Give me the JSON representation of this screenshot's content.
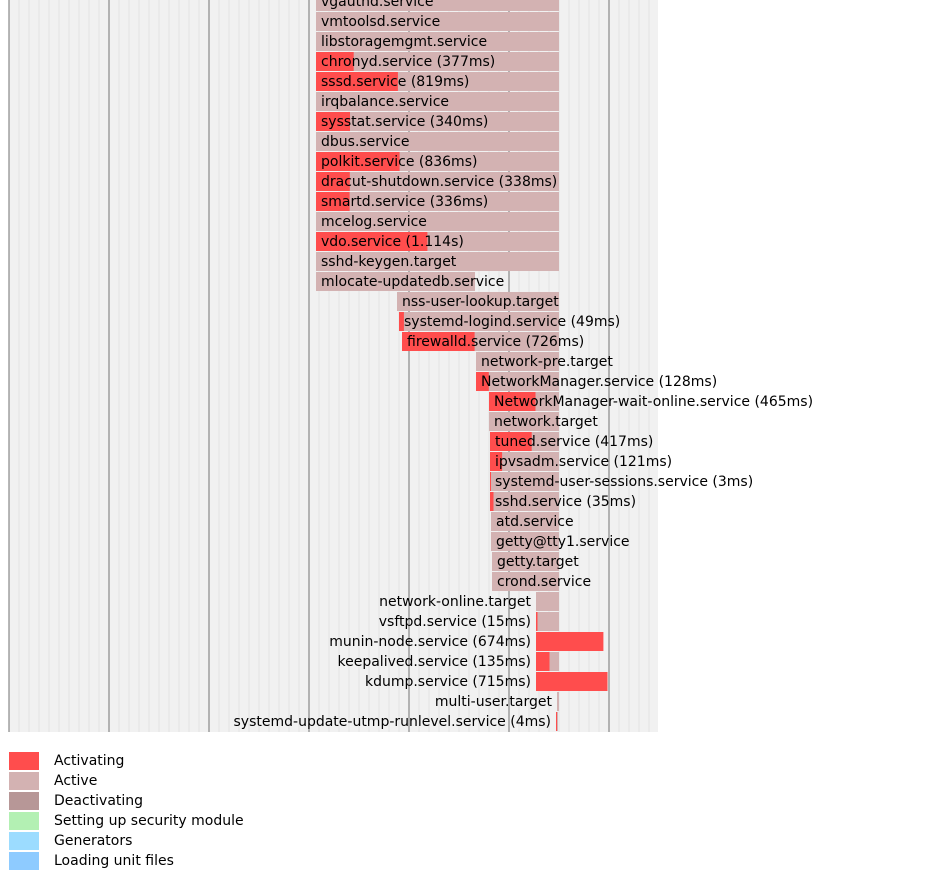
{
  "chart_data": {
    "type": "gantt",
    "time_unit": "seconds",
    "colors": {
      "activating": "#ff4d4d",
      "active": "#d3b2b2",
      "deactivating": "#b79797",
      "security": "#b3f0b3",
      "generators": "#9cdcff",
      "unitfiles": "#8ecbff",
      "background": "#f1f1f1",
      "major_grid": "#888888"
    },
    "units": [
      {
        "name": "vgauthd.service",
        "label": "vgauthd.service",
        "start": 18.07,
        "act_end": 18.07,
        "end": 20.5,
        "label_left": false
      },
      {
        "name": "vmtoolsd.service",
        "label": "vmtoolsd.service",
        "start": 18.07,
        "act_end": 18.07,
        "end": 20.5,
        "label_left": false
      },
      {
        "name": "libstoragemgmt.service",
        "label": "libstoragemgmt.service",
        "start": 18.07,
        "act_end": 18.07,
        "end": 20.5,
        "label_left": false
      },
      {
        "name": "chronyd.service",
        "duration": "377ms",
        "label": "chronyd.service (377ms)",
        "start": 18.07,
        "act_end": 18.447,
        "end": 20.5,
        "label_left": false
      },
      {
        "name": "sssd.service",
        "duration": "819ms",
        "label": "sssd.service (819ms)",
        "start": 18.07,
        "act_end": 18.889,
        "end": 20.5,
        "label_left": false
      },
      {
        "name": "irqbalance.service",
        "label": "irqbalance.service",
        "start": 18.07,
        "act_end": 18.07,
        "end": 20.5,
        "label_left": false
      },
      {
        "name": "sysstat.service",
        "duration": "340ms",
        "label": "sysstat.service (340ms)",
        "start": 18.07,
        "act_end": 18.41,
        "end": 20.5,
        "label_left": false
      },
      {
        "name": "dbus.service",
        "label": "dbus.service",
        "start": 18.07,
        "act_end": 18.07,
        "end": 20.5,
        "label_left": false
      },
      {
        "name": "polkit.service",
        "duration": "836ms",
        "label": "polkit.service (836ms)",
        "start": 18.07,
        "act_end": 18.906,
        "end": 20.5,
        "label_left": false
      },
      {
        "name": "dracut-shutdown.service",
        "duration": "338ms",
        "label": "dracut-shutdown.service (338ms)",
        "start": 18.07,
        "act_end": 18.408,
        "end": 20.5,
        "label_left": false
      },
      {
        "name": "smartd.service",
        "duration": "336ms",
        "label": "smartd.service (336ms)",
        "start": 18.07,
        "act_end": 18.406,
        "end": 20.5,
        "label_left": false
      },
      {
        "name": "mcelog.service",
        "label": "mcelog.service",
        "start": 18.07,
        "act_end": 18.07,
        "end": 20.5,
        "label_left": false
      },
      {
        "name": "vdo.service",
        "duration": "1.114s",
        "label": "vdo.service (1.114s)",
        "start": 18.07,
        "act_end": 19.184,
        "end": 20.5,
        "label_left": false
      },
      {
        "name": "sshd-keygen.target",
        "label": "sshd-keygen.target",
        "start": 18.07,
        "act_end": 18.07,
        "end": 20.5,
        "label_left": false
      },
      {
        "name": "mlocate-updatedb.service",
        "label": "mlocate-updatedb.service",
        "start": 18.07,
        "act_end": 18.07,
        "end": 19.66,
        "label_left": false
      },
      {
        "name": "nss-user-lookup.target",
        "label": "nss-user-lookup.target",
        "start": 18.88,
        "act_end": 18.88,
        "end": 20.5,
        "label_left": false
      },
      {
        "name": "systemd-logind.service",
        "duration": "49ms",
        "label": "systemd-logind.service (49ms)",
        "start": 18.9,
        "act_end": 18.949,
        "end": 20.5,
        "label_left": false
      },
      {
        "name": "firewalld.service",
        "duration": "726ms",
        "label": "firewalld.service (726ms)",
        "start": 18.93,
        "act_end": 19.656,
        "end": 20.5,
        "label_left": false
      },
      {
        "name": "network-pre.target",
        "label": "network-pre.target",
        "start": 19.67,
        "act_end": 19.67,
        "end": 20.5,
        "label_left": false
      },
      {
        "name": "NetworkManager.service",
        "duration": "128ms",
        "label": "NetworkManager.service (128ms)",
        "start": 19.67,
        "act_end": 19.798,
        "end": 20.5,
        "label_left": false
      },
      {
        "name": "NetworkManager-wait-online.service",
        "duration": "465ms",
        "label": "NetworkManager-wait-online.service (465ms)",
        "start": 19.8,
        "act_end": 20.265,
        "end": 20.5,
        "label_left": false
      },
      {
        "name": "network.target",
        "label": "network.target",
        "start": 19.8,
        "act_end": 19.8,
        "end": 20.5,
        "label_left": false
      },
      {
        "name": "tuned.service",
        "duration": "417ms",
        "label": "tuned.service (417ms)",
        "start": 19.81,
        "act_end": 20.227,
        "end": 20.5,
        "label_left": false
      },
      {
        "name": "ipvsadm.service",
        "duration": "121ms",
        "label": "ipvsadm.service (121ms)",
        "start": 19.81,
        "act_end": 19.931,
        "end": 20.5,
        "label_left": false
      },
      {
        "name": "systemd-user-sessions.service",
        "duration": "3ms",
        "label": "systemd-user-sessions.service (3ms)",
        "start": 19.81,
        "act_end": 19.813,
        "end": 20.5,
        "label_left": false
      },
      {
        "name": "sshd.service",
        "duration": "35ms",
        "label": "sshd.service (35ms)",
        "start": 19.81,
        "act_end": 19.845,
        "end": 20.5,
        "label_left": false
      },
      {
        "name": "atd.service",
        "label": "atd.service",
        "start": 19.82,
        "act_end": 19.82,
        "end": 20.5,
        "label_left": false
      },
      {
        "name": "getty@tty1.service",
        "label": "getty@tty1.service",
        "start": 19.82,
        "act_end": 19.82,
        "end": 20.5,
        "label_left": false
      },
      {
        "name": "getty.target",
        "label": "getty.target",
        "start": 19.83,
        "act_end": 19.83,
        "end": 20.5,
        "label_left": false
      },
      {
        "name": "crond.service",
        "label": "crond.service",
        "start": 19.83,
        "act_end": 19.83,
        "end": 20.5,
        "label_left": false
      },
      {
        "name": "network-online.target",
        "label": "network-online.target",
        "start": 20.27,
        "act_end": 20.27,
        "end": 20.5,
        "label_left": true
      },
      {
        "name": "vsftpd.service",
        "duration": "15ms",
        "label": "vsftpd.service (15ms)",
        "start": 20.27,
        "act_end": 20.285,
        "end": 20.5,
        "label_left": true
      },
      {
        "name": "munin-node.service",
        "duration": "674ms",
        "label": "munin-node.service (674ms)",
        "start": 20.27,
        "act_end": 20.944,
        "end": 20.5,
        "label_left": true
      },
      {
        "name": "keepalived.service",
        "duration": "135ms",
        "label": "keepalived.service (135ms)",
        "start": 20.27,
        "act_end": 20.405,
        "end": 20.5,
        "label_left": true
      },
      {
        "name": "kdump.service",
        "duration": "715ms",
        "label": "kdump.service (715ms)",
        "start": 20.27,
        "act_end": 20.985,
        "end": 20.5,
        "label_left": true
      },
      {
        "name": "multi-user.target",
        "label": "multi-user.target",
        "start": 20.48,
        "act_end": 20.48,
        "end": 20.5,
        "label_left": true
      },
      {
        "name": "systemd-update-utmp-runlevel.service",
        "duration": "4ms",
        "label": "systemd-update-utmp-runlevel.service (4ms)",
        "start": 20.47,
        "act_end": 20.474,
        "end": 20.49,
        "label_left": true
      }
    ]
  },
  "legend": [
    {
      "label": "Activating",
      "color": "#ff4d4d"
    },
    {
      "label": "Active",
      "color": "#d3b2b2"
    },
    {
      "label": "Deactivating",
      "color": "#b79797"
    },
    {
      "label": "Setting up security module",
      "color": "#b3f0b3"
    },
    {
      "label": "Generators",
      "color": "#9cdcff"
    },
    {
      "label": "Loading unit files",
      "color": "#8ecbff"
    }
  ]
}
